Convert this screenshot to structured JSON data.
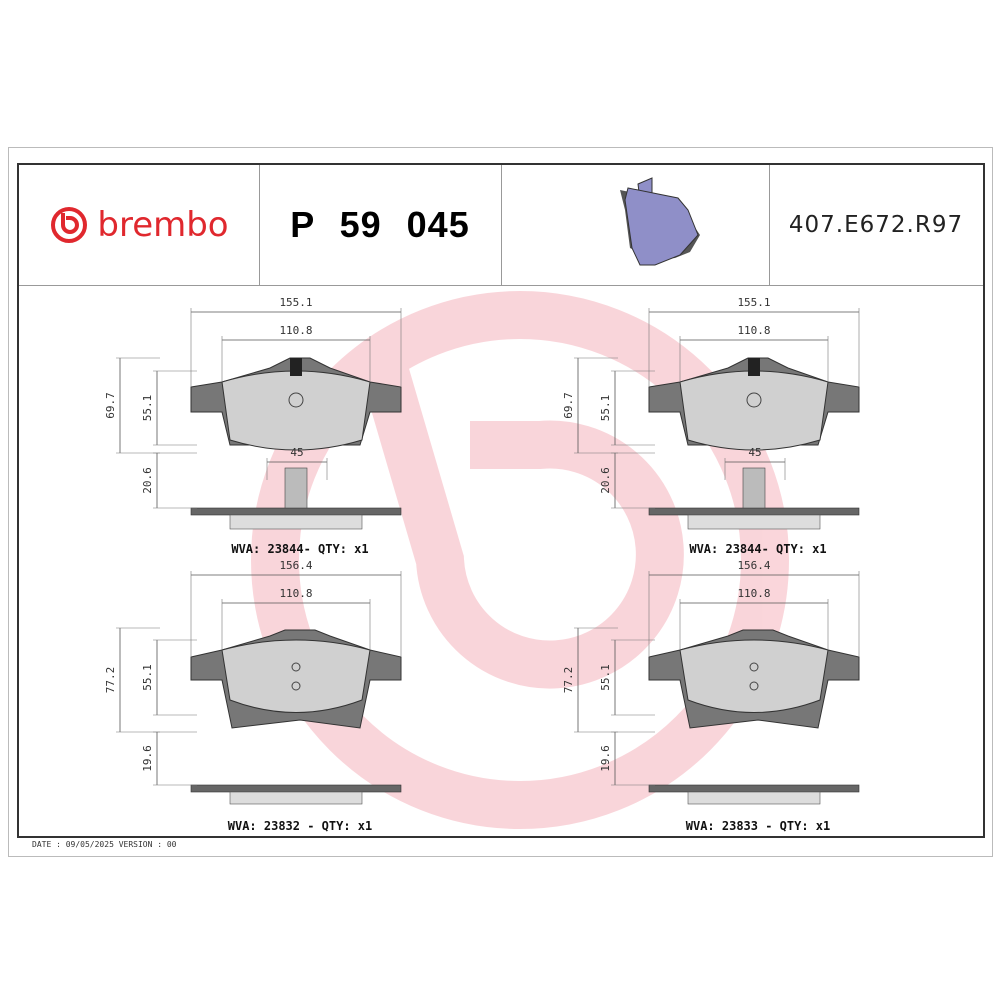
{
  "header": {
    "logo_text": "brembo",
    "part_number": "P 59 045",
    "reference_code": "407.E672.R97"
  },
  "colors": {
    "brand": "#e0282e",
    "pad_fill": "#777777",
    "friction_fill": "#d0d0d0",
    "thumbnail_fill": "#8f8fc8"
  },
  "drawings": [
    {
      "width_overall": "155.1",
      "width_friction": "110.8",
      "height_overall": "69.7",
      "height_friction": "55.1",
      "thickness": "20.6",
      "sensor_width": "45",
      "label": "WVA: 23844- QTY: x1"
    },
    {
      "width_overall": "155.1",
      "width_friction": "110.8",
      "height_overall": "69.7",
      "height_friction": "55.1",
      "thickness": "20.6",
      "sensor_width": "45",
      "label": "WVA: 23844- QTY: x1"
    },
    {
      "width_overall": "156.4",
      "width_friction": "110.8",
      "height_overall": "77.2",
      "height_friction": "55.1",
      "thickness": "19.6",
      "label": "WVA: 23832 - QTY: x1"
    },
    {
      "width_overall": "156.4",
      "width_friction": "110.8",
      "height_overall": "77.2",
      "height_friction": "55.1",
      "thickness": "19.6",
      "label": "WVA: 23833 - QTY: x1"
    }
  ],
  "footer": "DATE : 09/05/2025 VERSION : 00"
}
